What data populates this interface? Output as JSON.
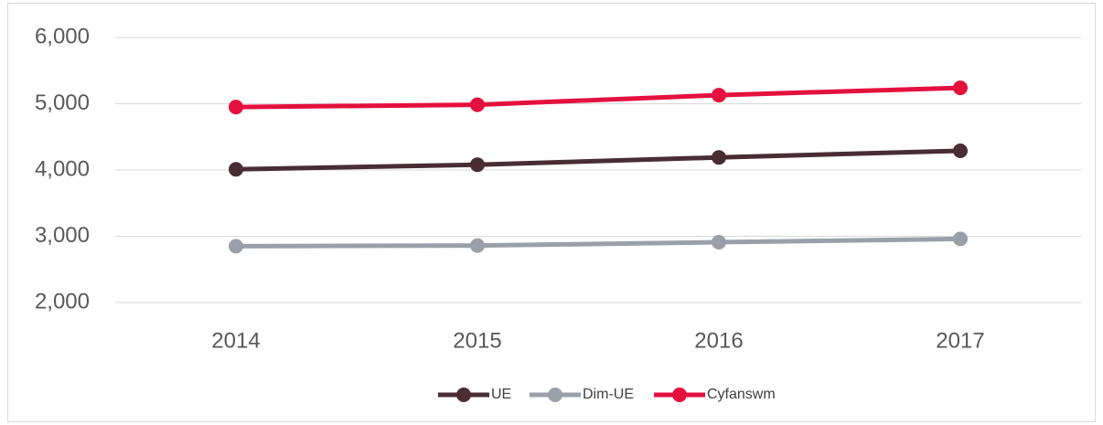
{
  "chart_data": {
    "type": "line",
    "categories": [
      "2014",
      "2015",
      "2016",
      "2017"
    ],
    "series": [
      {
        "name": "UE",
        "color": "#4a2c35",
        "values": [
          4010,
          4080,
          4190,
          4290
        ]
      },
      {
        "name": "Dim-UE",
        "color": "#9aa0aa",
        "values": [
          2850,
          2860,
          2910,
          2960
        ]
      },
      {
        "name": "Cyfanswm",
        "color": "#e4103e",
        "values": [
          4950,
          4985,
          5130,
          5240
        ]
      }
    ],
    "ylim": [
      2000,
      6000
    ],
    "yticks": [
      {
        "value": 2000,
        "label": "2,000"
      },
      {
        "value": 3000,
        "label": "3,000"
      },
      {
        "value": 4000,
        "label": "4,000"
      },
      {
        "value": 5000,
        "label": "5,000"
      },
      {
        "value": 6000,
        "label": "6,000"
      }
    ],
    "grid": true,
    "legend": "bottom"
  }
}
